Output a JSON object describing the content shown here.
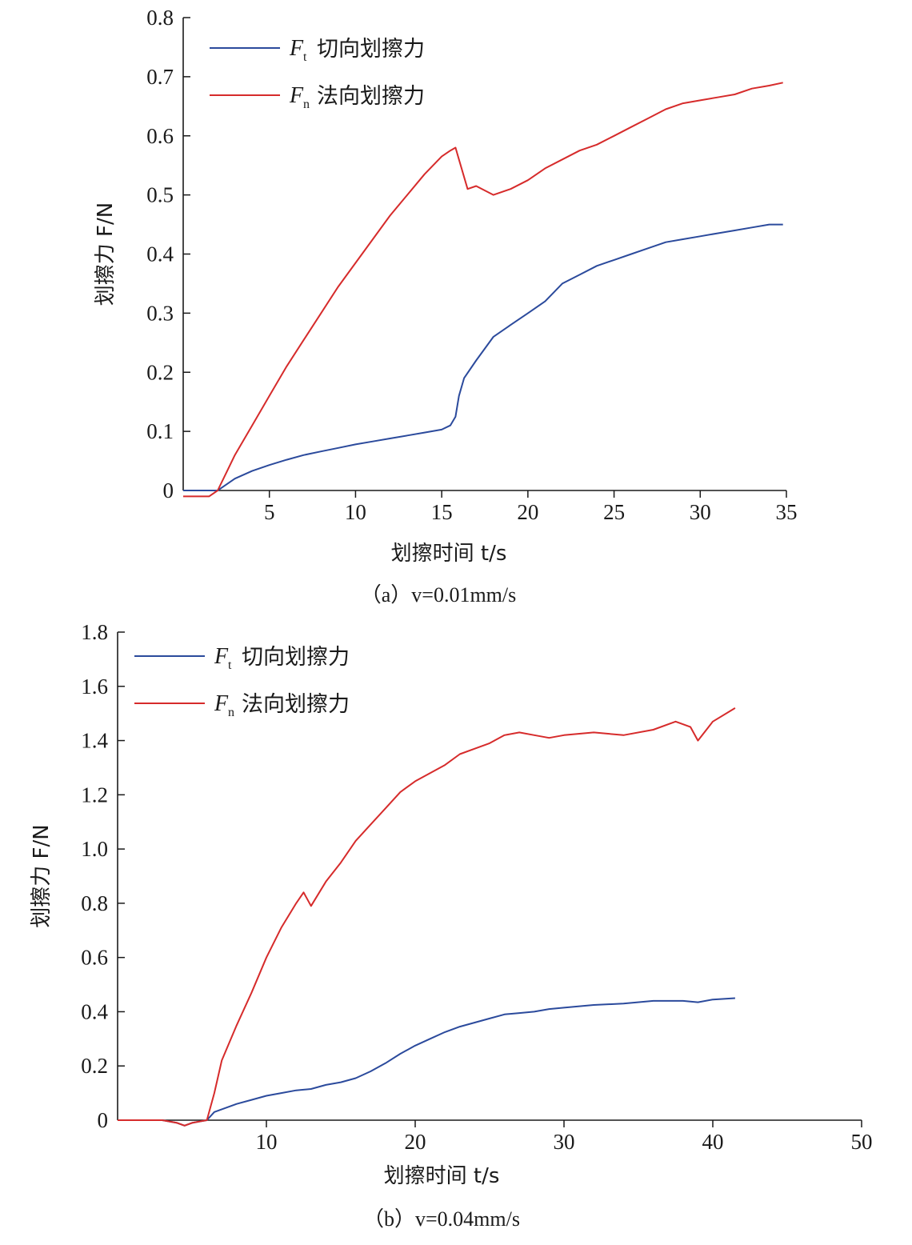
{
  "chart_data": [
    {
      "type": "line",
      "caption": "（a）v=0.01mm/s",
      "xlabel": "划擦时间 t/s",
      "ylabel": "划擦力 F/N",
      "xlim": [
        0,
        35
      ],
      "ylim": [
        0,
        0.8
      ],
      "xticks": [
        "5",
        "10",
        "15",
        "20",
        "25",
        "30",
        "35"
      ],
      "yticks": [
        "0",
        "0.1",
        "0.2",
        "0.3",
        "0.4",
        "0.5",
        "0.6",
        "0.7",
        "0.8"
      ],
      "grid": false,
      "legend_position": "top-left",
      "series": [
        {
          "name": "Ft 切向划擦力",
          "symbol": "F",
          "subscript": "t",
          "label": "切向划擦力",
          "color": "#2b4a9c",
          "x": [
            0,
            1,
            1.5,
            2,
            2.5,
            3,
            4,
            5,
            6,
            7,
            8,
            9,
            10,
            11,
            12,
            13,
            14,
            15,
            15.5,
            15.8,
            16,
            16.3,
            17,
            18,
            19,
            20,
            21,
            22,
            23,
            24,
            25,
            26,
            27,
            28,
            29,
            30,
            31,
            32,
            33,
            34,
            34.8
          ],
          "y": [
            0,
            0,
            0,
            0,
            0.01,
            0.02,
            0.033,
            0.043,
            0.052,
            0.06,
            0.066,
            0.072,
            0.078,
            0.083,
            0.088,
            0.093,
            0.098,
            0.103,
            0.11,
            0.125,
            0.16,
            0.19,
            0.22,
            0.26,
            0.28,
            0.3,
            0.32,
            0.35,
            0.365,
            0.38,
            0.39,
            0.4,
            0.41,
            0.42,
            0.425,
            0.43,
            0.435,
            0.44,
            0.445,
            0.45,
            0.45
          ]
        },
        {
          "name": "Fn 法向划擦力",
          "symbol": "F",
          "subscript": "n",
          "label": "法向划擦力",
          "color": "#d62b2b",
          "x": [
            0,
            1,
            1.5,
            2,
            2.5,
            3,
            4,
            5,
            6,
            7,
            8,
            9,
            10,
            11,
            12,
            13,
            14,
            15,
            15.5,
            15.8,
            16,
            16.5,
            17,
            18,
            19,
            20,
            21,
            22,
            23,
            24,
            25,
            26,
            27,
            28,
            29,
            30,
            31,
            32,
            33,
            34,
            34.8
          ],
          "y": [
            -0.01,
            -0.01,
            -0.01,
            0,
            0.03,
            0.06,
            0.11,
            0.16,
            0.21,
            0.255,
            0.3,
            0.345,
            0.385,
            0.425,
            0.465,
            0.5,
            0.535,
            0.565,
            0.575,
            0.58,
            0.56,
            0.51,
            0.515,
            0.5,
            0.51,
            0.525,
            0.545,
            0.56,
            0.575,
            0.585,
            0.6,
            0.615,
            0.63,
            0.645,
            0.655,
            0.66,
            0.665,
            0.67,
            0.68,
            0.685,
            0.69
          ]
        }
      ]
    },
    {
      "type": "line",
      "caption": "（b）v=0.04mm/s",
      "xlabel": "划擦时间 t/s",
      "ylabel": "划擦力 F/N",
      "xlim": [
        0,
        50
      ],
      "ylim": [
        0,
        1.8
      ],
      "xticks": [
        "10",
        "20",
        "30",
        "40",
        "50"
      ],
      "yticks": [
        "0",
        "0.2",
        "0.4",
        "0.6",
        "0.8",
        "1.0",
        "1.2",
        "1.4",
        "1.6",
        "1.8"
      ],
      "grid": false,
      "legend_position": "top-left",
      "series": [
        {
          "name": "Ft 切向划擦力",
          "symbol": "F",
          "subscript": "t",
          "label": "切向划擦力",
          "color": "#2b4a9c",
          "x": [
            0,
            2,
            3,
            4,
            4.5,
            5,
            6,
            6.5,
            7,
            8,
            9,
            10,
            11,
            12,
            13,
            14,
            15,
            16,
            17,
            18,
            19,
            20,
            21,
            22,
            23,
            24,
            25,
            26,
            27,
            28,
            29,
            30,
            32,
            34,
            36,
            38,
            39,
            40,
            41.5
          ],
          "y": [
            0,
            0,
            0,
            -0.01,
            -0.02,
            -0.01,
            0,
            0.03,
            0.04,
            0.06,
            0.075,
            0.09,
            0.1,
            0.11,
            0.115,
            0.13,
            0.14,
            0.155,
            0.18,
            0.21,
            0.245,
            0.275,
            0.3,
            0.325,
            0.345,
            0.36,
            0.375,
            0.39,
            0.395,
            0.4,
            0.41,
            0.415,
            0.425,
            0.43,
            0.44,
            0.44,
            0.435,
            0.445,
            0.45
          ]
        },
        {
          "name": "Fn 法向划擦力",
          "symbol": "F",
          "subscript": "n",
          "label": "法向划擦力",
          "color": "#d62b2b",
          "x": [
            0,
            2,
            3,
            4,
            4.5,
            5,
            6,
            6.5,
            7,
            8,
            9,
            10,
            11,
            12,
            12.5,
            13,
            14,
            15,
            16,
            17,
            18,
            19,
            20,
            21,
            22,
            23,
            24,
            25,
            26,
            27,
            28,
            29,
            30,
            32,
            34,
            36,
            37.5,
            38.5,
            39,
            40,
            41.5
          ],
          "y": [
            0,
            0,
            0,
            -0.01,
            -0.02,
            -0.01,
            0,
            0.1,
            0.22,
            0.35,
            0.47,
            0.6,
            0.71,
            0.8,
            0.84,
            0.79,
            0.88,
            0.95,
            1.03,
            1.09,
            1.15,
            1.21,
            1.25,
            1.28,
            1.31,
            1.35,
            1.37,
            1.39,
            1.42,
            1.43,
            1.42,
            1.41,
            1.42,
            1.43,
            1.42,
            1.44,
            1.47,
            1.45,
            1.4,
            1.47,
            1.52
          ]
        }
      ]
    }
  ]
}
